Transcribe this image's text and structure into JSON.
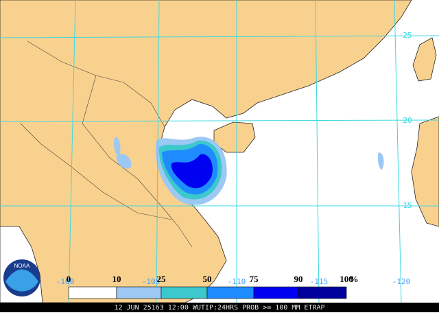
{
  "map": {
    "lat_labels": [
      "25",
      "20",
      "15"
    ],
    "lon_labels": [
      "-100",
      "-105",
      "-110",
      "-115",
      "-120"
    ]
  },
  "legend": {
    "labels": [
      0,
      10,
      25,
      50,
      75,
      90,
      100
    ],
    "unit": "%",
    "colors": [
      "#ffffff",
      "#9cc8f4",
      "#3cc8cc",
      "#1e8cff",
      "#0000f0",
      "#00009c"
    ]
  },
  "footer": "12 JUN 25163 12:00 WUTIP:24HRS PROB >= 100 MM ETRAP"
}
